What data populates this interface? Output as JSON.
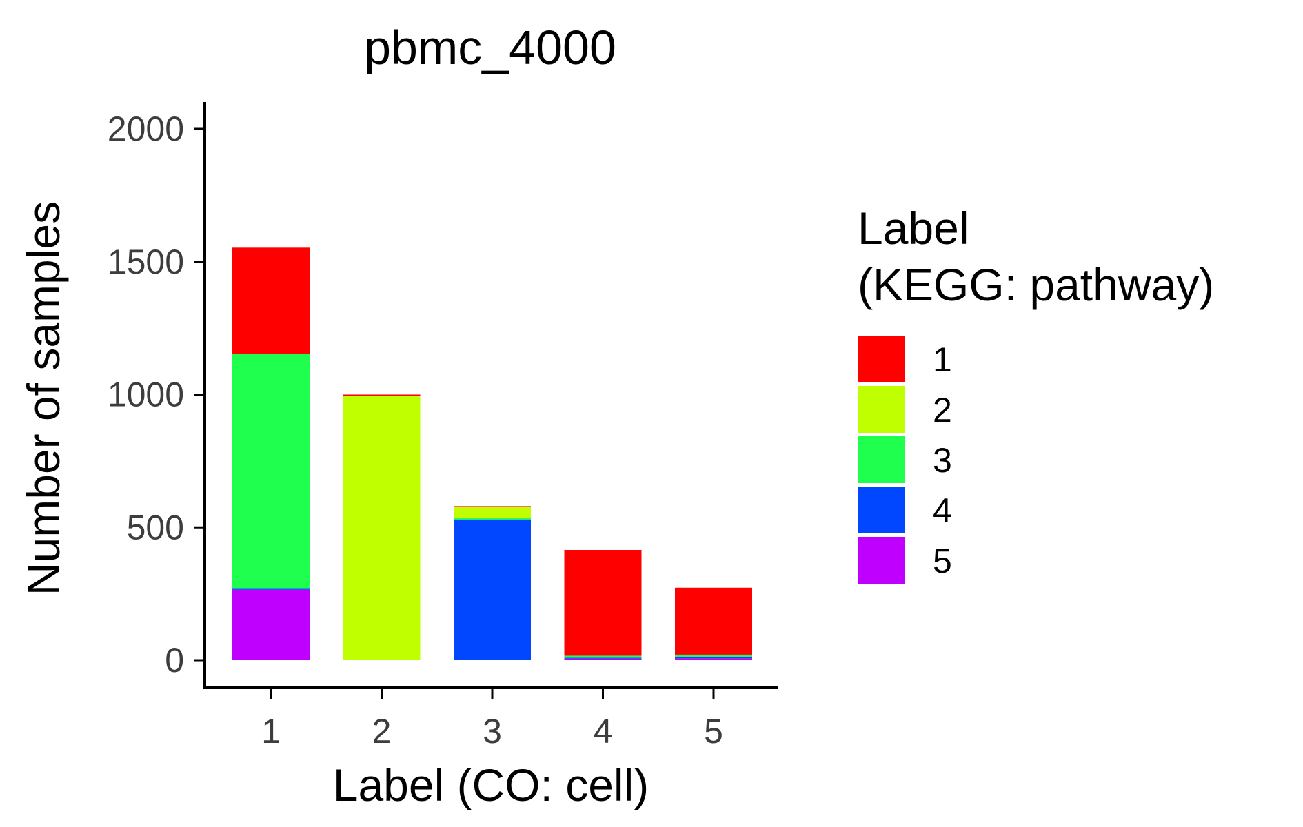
{
  "chart_data": {
    "type": "bar",
    "stacked": true,
    "title": "pbmc_4000",
    "xlabel": "Label (CO: cell)",
    "ylabel": "Number of samples",
    "categories": [
      "1",
      "2",
      "3",
      "4",
      "5"
    ],
    "ylim": [
      0,
      2100
    ],
    "yticks": [
      0,
      500,
      1000,
      1500,
      2000
    ],
    "grid": false,
    "legend": {
      "title_lines": [
        "Label",
        "(KEGG: pathway)"
      ],
      "placement": "right"
    },
    "series": [
      {
        "name": "5",
        "color": "#BF00FF",
        "values": [
          265,
          0,
          0,
          6,
          7
        ]
      },
      {
        "name": "4",
        "color": "#0047FF",
        "values": [
          6,
          0,
          530,
          3,
          4
        ]
      },
      {
        "name": "3",
        "color": "#1FFF4E",
        "values": [
          882,
          2,
          5,
          8,
          10
        ]
      },
      {
        "name": "2",
        "color": "#C0FF00",
        "values": [
          0,
          993,
          42,
          0,
          0
        ]
      },
      {
        "name": "1",
        "color": "#FF0000",
        "values": [
          400,
          5,
          3,
          398,
          252
        ]
      }
    ],
    "legend_order": [
      "1",
      "2",
      "3",
      "4",
      "5"
    ]
  }
}
